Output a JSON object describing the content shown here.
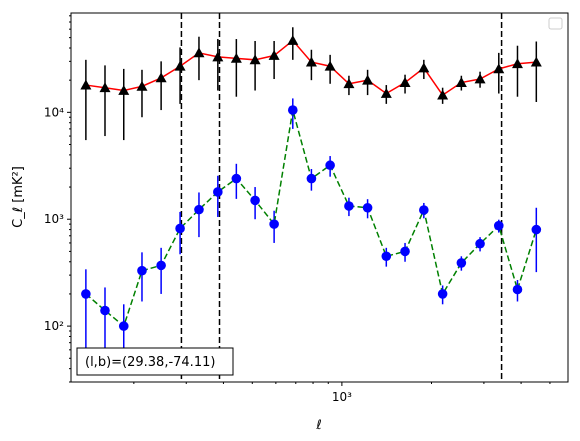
{
  "chart_data": {
    "type": "line",
    "title": "",
    "xlabel": "ℓ",
    "ylabel": "C_ℓ  [mK²]",
    "xscale": "log",
    "yscale": "log",
    "xlim": [
      123,
      5750
    ],
    "ylim": [
      30,
      85000
    ],
    "x_tick_labels": [
      {
        "value": 1000,
        "label": "10³"
      }
    ],
    "y_tick_labels": [
      {
        "value": 100,
        "label": "10²"
      },
      {
        "value": 1000,
        "label": "10³"
      },
      {
        "value": 10000,
        "label": "10⁴"
      }
    ],
    "grid": false,
    "legend": {
      "placement": "upper right",
      "entries": []
    },
    "annotation": {
      "text": "(l,b)=(29.38,-74.11)",
      "placement": "lower left"
    },
    "vertical_lines": [
      289,
      388,
      3440
    ],
    "series": [
      {
        "color": "#ff0000",
        "marker": "triangle",
        "marker_color": "#000000",
        "linestyle": "solid",
        "x": [
          138,
          160,
          185,
          213,
          247,
          286,
          331,
          383,
          442,
          511,
          592,
          684,
          790,
          913,
          1056,
          1220,
          1410,
          1630,
          1885,
          2180,
          2520,
          2912,
          3366,
          3890,
          4500
        ],
        "y": [
          18000,
          17000,
          16000,
          17500,
          21000,
          27000,
          36000,
          33000,
          32000,
          31000,
          34000,
          47000,
          29500,
          27000,
          18500,
          20000,
          15000,
          19000,
          26000,
          14500,
          19000,
          20500,
          25500,
          28500,
          29500
        ],
        "yerr_low": [
          12500,
          11000,
          10500,
          8500,
          10500,
          15000,
          16000,
          17000,
          18000,
          15000,
          13500,
          16000,
          9500,
          8500,
          4000,
          5500,
          3000,
          4000,
          5500,
          2500,
          3000,
          3500,
          10500,
          14500,
          17000
        ],
        "yerr_high": [
          13000,
          10500,
          9500,
          7500,
          9000,
          13500,
          15000,
          15500,
          16500,
          15500,
          12500,
          15500,
          9000,
          7500,
          3500,
          5000,
          3000,
          3500,
          5000,
          2500,
          3000,
          3500,
          10500,
          13500,
          16500
        ]
      },
      {
        "color": "#008000",
        "marker": "circle",
        "marker_color": "#0000ff",
        "linestyle": "dashed",
        "x": [
          138,
          160,
          185,
          213,
          247,
          286,
          331,
          383,
          442,
          511,
          592,
          684,
          790,
          913,
          1056,
          1220,
          1410,
          1630,
          1885,
          2180,
          2520,
          2912,
          3366,
          3890,
          4500
        ],
        "y": [
          200,
          140,
          100,
          330,
          370,
          820,
          1230,
          1800,
          2400,
          1500,
          900,
          10500,
          2400,
          3200,
          1330,
          1280,
          450,
          500,
          1220,
          200,
          390,
          590,
          870,
          220,
          800
        ],
        "yerr_low": [
          140,
          90,
          60,
          160,
          170,
          350,
          550,
          750,
          850,
          500,
          300,
          3500,
          550,
          700,
          260,
          260,
          90,
          100,
          200,
          40,
          60,
          90,
          120,
          50,
          480
        ],
        "yerr_high": [
          140,
          90,
          60,
          160,
          170,
          350,
          550,
          750,
          900,
          500,
          300,
          3000,
          550,
          700,
          260,
          260,
          90,
          100,
          200,
          40,
          60,
          90,
          120,
          50,
          480
        ]
      }
    ]
  }
}
